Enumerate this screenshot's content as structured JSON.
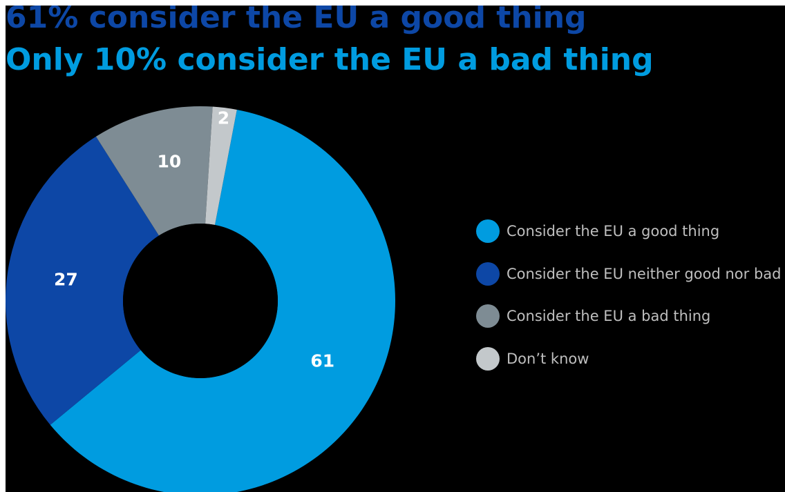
{
  "chart_data": {
    "type": "pie",
    "title": "61% consider the EU a good thing",
    "subtitle": "Only 10% consider the EU a bad thing",
    "slices": [
      {
        "label": "Consider the EU a good thing",
        "value": 61,
        "color": "#009ce0"
      },
      {
        "label": "Consider the EU neither good nor bad",
        "value": 27,
        "color": "#0d47a6"
      },
      {
        "label": "Consider the EU a bad thing",
        "value": 10,
        "color": "#7e8c94"
      },
      {
        "label": "Don’t know",
        "value": 2,
        "color": "#c3c8cb"
      }
    ],
    "data_labels": [
      "61",
      "27",
      "10",
      "2"
    ],
    "legend_position": "right"
  }
}
